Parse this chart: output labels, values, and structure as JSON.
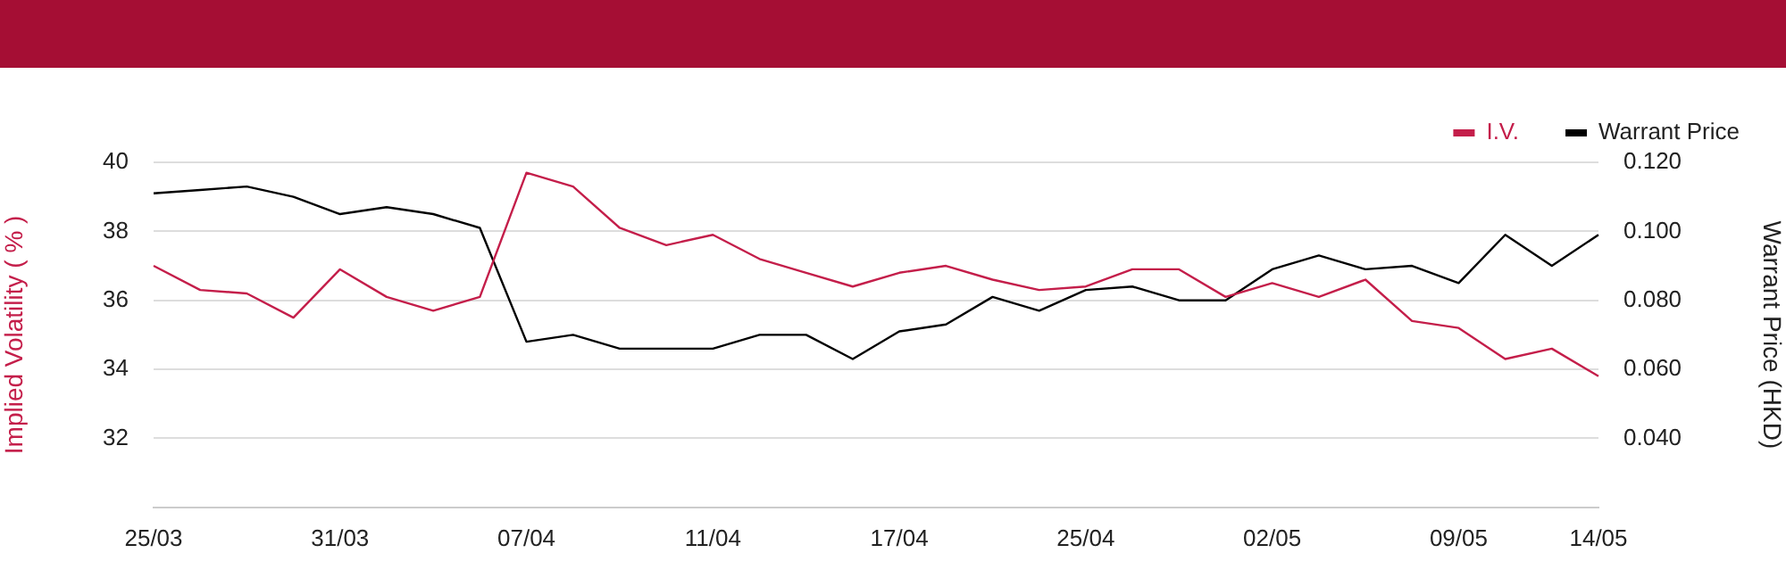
{
  "chart_data": {
    "type": "line",
    "categories": [
      "25/03",
      null,
      null,
      null,
      "31/03",
      null,
      null,
      null,
      "07/04",
      null,
      null,
      null,
      "11/04",
      null,
      null,
      null,
      "17/04",
      null,
      null,
      null,
      "25/04",
      null,
      null,
      null,
      "02/05",
      null,
      null,
      null,
      "09/05",
      null,
      null,
      "14/05"
    ],
    "series": [
      {
        "name": "I.V.",
        "color": "#c41e4a",
        "values": [
          37.0,
          36.3,
          36.2,
          35.5,
          36.9,
          36.1,
          35.7,
          36.1,
          39.7,
          39.3,
          38.1,
          37.6,
          37.9,
          37.2,
          36.8,
          36.4,
          36.8,
          37.0,
          36.6,
          36.3,
          36.4,
          36.9,
          36.9,
          36.1,
          36.5,
          36.1,
          36.6,
          35.4,
          35.2,
          34.3,
          34.6,
          33.8
        ]
      },
      {
        "name": "Warrant Price",
        "color": "#000000",
        "axis": "y2",
        "values": [
          0.111,
          0.112,
          0.113,
          0.11,
          0.105,
          0.107,
          0.105,
          0.101,
          0.068,
          0.07,
          0.066,
          0.066,
          0.066,
          0.07,
          0.07,
          0.063,
          0.071,
          0.073,
          0.081,
          0.077,
          0.083,
          0.084,
          0.08,
          0.08,
          0.089,
          0.093,
          0.089,
          0.09,
          0.085,
          0.099,
          0.09,
          0.099
        ]
      }
    ],
    "ylabel": "Implied Volatility ( % )",
    "y2label": "Warrant Price (HKD)",
    "ylim": [
      30,
      40
    ],
    "yticks": [
      32,
      34,
      36,
      38,
      40
    ],
    "y2lim": [
      0.02,
      0.12
    ],
    "y2ticks": [
      {
        "value": 0.04,
        "label": "0.040"
      },
      {
        "value": 0.06,
        "label": "0.060"
      },
      {
        "value": 0.08,
        "label": "0.080"
      },
      {
        "value": 0.1,
        "label": "0.100"
      },
      {
        "value": 0.12,
        "label": "0.120"
      }
    ],
    "grid": "y",
    "legend": "top right",
    "marker": "none",
    "line_style": "solid"
  }
}
